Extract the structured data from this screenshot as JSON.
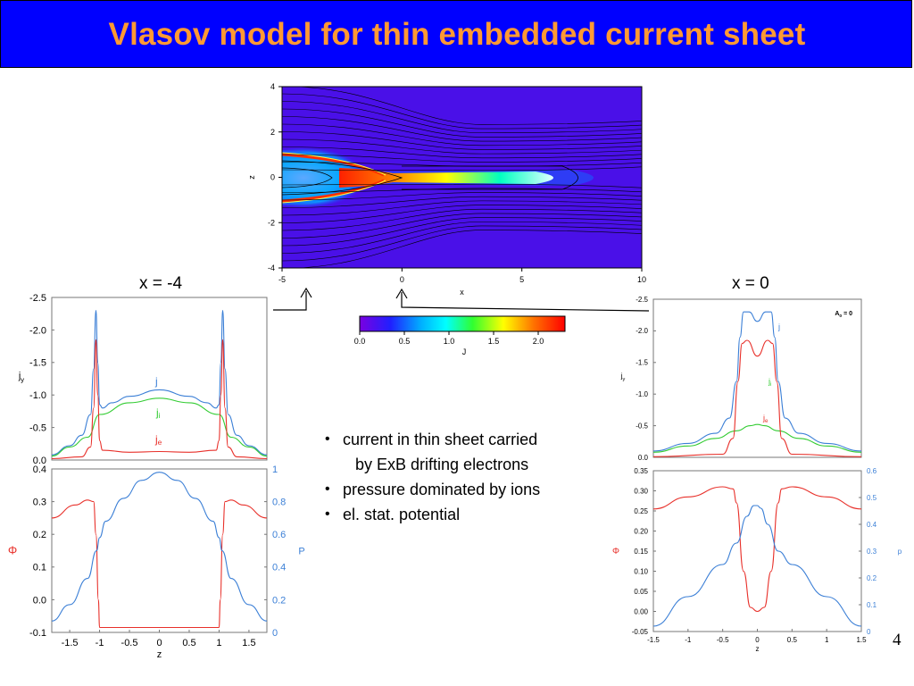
{
  "title": "Vlasov model for thin embedded  current sheet",
  "page_number": "4",
  "labels": {
    "left_panel": "x = -4",
    "right_panel": "x = 0"
  },
  "bullets": [
    {
      "text": "current in thin sheet carried",
      "cont": "by ExB drifting electrons"
    },
    {
      "text": "pressure dominated by ions"
    },
    {
      "text": "el. stat. potential"
    }
  ],
  "colors": {
    "title_bg": "#0000ff",
    "title_text": "#ff9933",
    "red": "#e8302a",
    "blue": "#3b7fd6",
    "green": "#33cc33"
  },
  "chart_data": [
    {
      "type": "heatmap",
      "xlabel": "x",
      "ylabel": "z",
      "xlim": [
        -5,
        10
      ],
      "ylim": [
        -4,
        4
      ],
      "xticks": [
        "-5",
        "0",
        "5",
        "10"
      ],
      "yticks": [
        "4",
        "2",
        "0",
        "-2",
        "-4"
      ],
      "colorbar": {
        "label": "J",
        "range": [
          0,
          2.3
        ],
        "ticks": [
          "0.0",
          "0.5",
          "1.0",
          "1.5",
          "2.0"
        ]
      }
    },
    {
      "type": "line",
      "ylabel": "jy",
      "ylim": [
        0,
        -2.5
      ],
      "yticks": [
        "-2.5",
        "-2.0",
        "-1.5",
        "-1.0",
        "-0.5",
        "0.0"
      ],
      "xlim": [
        -1.8,
        1.8
      ],
      "series": [
        {
          "name": "j",
          "color": "#3b7fd6",
          "x": [
            -1.8,
            -1.5,
            -1.3,
            -1.15,
            -1.1,
            -1.06,
            -1.03,
            -1.0,
            -0.95,
            -0.8,
            -0.5,
            0,
            0.5,
            0.8,
            0.95,
            1.0,
            1.03,
            1.06,
            1.1,
            1.15,
            1.3,
            1.5,
            1.8
          ],
          "y": [
            -0.08,
            -0.22,
            -0.38,
            -0.7,
            -1.4,
            -2.3,
            -1.5,
            -0.85,
            -0.8,
            -0.88,
            -0.98,
            -1.08,
            -0.98,
            -0.88,
            -0.8,
            -0.85,
            -1.5,
            -2.3,
            -1.4,
            -0.7,
            -0.38,
            -0.22,
            -0.08
          ]
        },
        {
          "name": "ji",
          "color": "#33cc33",
          "x": [
            -1.8,
            -1.5,
            -1.2,
            -1.0,
            -0.5,
            0,
            0.5,
            1.0,
            1.2,
            1.5,
            1.8
          ],
          "y": [
            -0.06,
            -0.2,
            -0.35,
            -0.7,
            -0.88,
            -0.95,
            -0.88,
            -0.7,
            -0.35,
            -0.2,
            -0.06
          ]
        },
        {
          "name": "je",
          "color": "#e8302a",
          "x": [
            -1.8,
            -1.3,
            -1.15,
            -1.1,
            -1.06,
            -1.03,
            -1.0,
            -0.95,
            -0.5,
            0,
            0.5,
            0.95,
            1.0,
            1.03,
            1.06,
            1.1,
            1.15,
            1.3,
            1.8
          ],
          "y": [
            -0.02,
            -0.05,
            -0.2,
            -0.8,
            -1.85,
            -1.0,
            -0.3,
            -0.15,
            -0.12,
            -0.13,
            -0.12,
            -0.15,
            -0.3,
            -1.0,
            -1.85,
            -0.8,
            -0.2,
            -0.05,
            -0.02
          ]
        }
      ],
      "series_labels": [
        "j",
        "ji",
        "je"
      ]
    },
    {
      "type": "line",
      "left_axis_label": "Φ",
      "right_axis_label": "P",
      "ylim_left": [
        -0.1,
        0.4
      ],
      "ylim_right": [
        0,
        1
      ],
      "yticks_left": [
        "0.4",
        "0.3",
        "0.2",
        "0.1",
        "0.0",
        "-0.1"
      ],
      "yticks_right": [
        "1",
        "0.8",
        "0.6",
        "0.4",
        "0.2",
        "0"
      ],
      "xlabel": "z",
      "xlim": [
        -1.8,
        1.8
      ],
      "xticks": [
        "-1.5",
        "-1",
        "-0.5",
        "0",
        "0.5",
        "1",
        "1.5"
      ],
      "series": [
        {
          "name": "Φ",
          "color": "#e8302a",
          "x": [
            -1.8,
            -1.4,
            -1.2,
            -1.1,
            -1.06,
            -1.02,
            -1.0,
            -0.5,
            0,
            0.5,
            1.0,
            1.02,
            1.06,
            1.1,
            1.2,
            1.4,
            1.8
          ],
          "y": [
            0.25,
            0.29,
            0.305,
            0.3,
            0.2,
            0.0,
            -0.085,
            -0.085,
            -0.085,
            -0.085,
            -0.085,
            0.0,
            0.2,
            0.3,
            0.305,
            0.29,
            0.25
          ]
        },
        {
          "name": "P",
          "color": "#3b7fd6",
          "x": [
            -1.8,
            -1.5,
            -1.2,
            -1.05,
            -1.0,
            -0.9,
            -0.6,
            -0.3,
            0,
            0.3,
            0.6,
            0.9,
            1.0,
            1.05,
            1.2,
            1.5,
            1.8
          ],
          "y": [
            0.07,
            0.17,
            0.33,
            0.5,
            0.58,
            0.68,
            0.82,
            0.93,
            0.98,
            0.93,
            0.82,
            0.68,
            0.58,
            0.5,
            0.33,
            0.17,
            0.07
          ]
        }
      ]
    },
    {
      "type": "line",
      "ylabel": "jy",
      "ylim": [
        0,
        -2.5
      ],
      "yticks": [
        "-2.5",
        "-2.0",
        "-1.5",
        "-1.0",
        "-0.5",
        "0.0"
      ],
      "xlim": [
        -1.5,
        1.5
      ],
      "annotation": "A0 = 0",
      "series": [
        {
          "name": "j",
          "color": "#3b7fd6",
          "x": [
            -1.5,
            -1.0,
            -0.6,
            -0.4,
            -0.3,
            -0.25,
            -0.2,
            -0.12,
            0,
            0.12,
            0.2,
            0.25,
            0.3,
            0.4,
            0.6,
            1.0,
            1.5
          ],
          "y": [
            -0.1,
            -0.22,
            -0.38,
            -0.62,
            -1.2,
            -1.9,
            -2.3,
            -2.3,
            -2.15,
            -2.3,
            -2.3,
            -1.9,
            -1.2,
            -0.62,
            -0.38,
            -0.22,
            -0.1
          ]
        },
        {
          "name": "ji",
          "color": "#33cc33",
          "x": [
            -1.5,
            -1.0,
            -0.6,
            -0.3,
            -0.1,
            0,
            0.1,
            0.3,
            0.6,
            1.0,
            1.5
          ],
          "y": [
            -0.08,
            -0.18,
            -0.3,
            -0.42,
            -0.5,
            -0.52,
            -0.5,
            -0.42,
            -0.3,
            -0.18,
            -0.08
          ]
        },
        {
          "name": "je",
          "color": "#e8302a",
          "x": [
            -1.5,
            -0.5,
            -0.35,
            -0.28,
            -0.22,
            -0.15,
            0,
            0.15,
            0.22,
            0.28,
            0.35,
            0.5,
            1.5
          ],
          "y": [
            -0.01,
            -0.05,
            -0.3,
            -1.2,
            -1.8,
            -1.85,
            -1.6,
            -1.85,
            -1.8,
            -1.2,
            -0.3,
            -0.05,
            -0.01
          ]
        }
      ],
      "series_labels": [
        "j",
        "ji",
        "je"
      ]
    },
    {
      "type": "line",
      "left_axis_label": "Φ",
      "right_axis_label": "p",
      "ylim_left": [
        -0.05,
        0.35
      ],
      "ylim_right": [
        0,
        0.6
      ],
      "yticks_left": [
        "0.35",
        "0.30",
        "0.25",
        "0.20",
        "0.15",
        "0.10",
        "0.05",
        "0.00",
        "-0.05"
      ],
      "yticks_right": [
        "0.6",
        "0.5",
        "0.4",
        "0.3",
        "0.2",
        "0.1",
        "0"
      ],
      "xlabel": "z",
      "xlim": [
        -1.5,
        1.5
      ],
      "xticks": [
        "-1.5",
        "-1",
        "-0.5",
        "0",
        "0.5",
        "1",
        "1.5"
      ],
      "series": [
        {
          "name": "Φ",
          "color": "#e8302a",
          "x": [
            -1.5,
            -1.0,
            -0.5,
            -0.35,
            -0.3,
            -0.2,
            -0.1,
            0,
            0.1,
            0.2,
            0.3,
            0.35,
            0.5,
            1.0,
            1.5
          ],
          "y": [
            0.255,
            0.285,
            0.31,
            0.305,
            0.27,
            0.1,
            0.01,
            0.0,
            0.01,
            0.1,
            0.27,
            0.305,
            0.31,
            0.285,
            0.255
          ]
        },
        {
          "name": "p",
          "color": "#3b7fd6",
          "x": [
            -1.5,
            -1.0,
            -0.5,
            -0.3,
            -0.15,
            -0.05,
            0,
            0.05,
            0.15,
            0.3,
            0.5,
            1.0,
            1.5
          ],
          "y": [
            0.02,
            0.13,
            0.25,
            0.33,
            0.43,
            0.47,
            0.47,
            0.46,
            0.4,
            0.3,
            0.25,
            0.13,
            0.02
          ]
        }
      ]
    }
  ]
}
